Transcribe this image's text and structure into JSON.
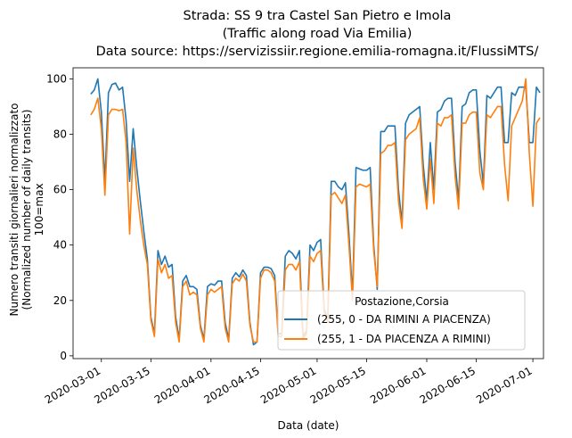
{
  "chart_data": {
    "type": "line",
    "title_lines": [
      "Strada: SS 9 tra Castel San Pietro e Imola",
      "(Traffic along road Via Emilia)",
      "Data source: https://servizissiir.regione.emilia-romagna.it/FlussiMTS/"
    ],
    "xlabel": "Data (date)",
    "ylabel_lines": [
      "Numero transiti giornalieri normalizzato",
      "(Normalized number of daily transits)",
      "100=max"
    ],
    "ylim": [
      -1,
      104
    ],
    "yticks": [
      0,
      20,
      40,
      60,
      80,
      100
    ],
    "xlim": [
      "2020-02-22",
      "2020-07-04"
    ],
    "xticks": [
      "2020-03-01",
      "2020-03-15",
      "2020-04-01",
      "2020-04-15",
      "2020-05-01",
      "2020-05-15",
      "2020-06-01",
      "2020-06-15",
      "2020-07-01"
    ],
    "grid": false,
    "legend": {
      "title": "Postazione,Corsia",
      "position": "lower-right"
    },
    "series": [
      {
        "name": "(255, 0 - DA RIMINI A PIACENZA)",
        "color": "#1f77b4",
        "start": "2020-02-27",
        "values": [
          94.5,
          96,
          100,
          88,
          63,
          95,
          98,
          98.5,
          96,
          97,
          85,
          63,
          82,
          68,
          56,
          45,
          35,
          14,
          8,
          38,
          33,
          36,
          32,
          33,
          14,
          6,
          27,
          29,
          25,
          25,
          24,
          11,
          6,
          25,
          26,
          25.5,
          27,
          27,
          12,
          6,
          28,
          30,
          28.5,
          31,
          29,
          12,
          4,
          5,
          30,
          32,
          32,
          31.5,
          29,
          8,
          8,
          36,
          38,
          37,
          35,
          38,
          7,
          9,
          40,
          38,
          41,
          42,
          17,
          13,
          63,
          63,
          61,
          60,
          62.5,
          44,
          22,
          68,
          67.5,
          67,
          67,
          68,
          40,
          24,
          81,
          81,
          83,
          83,
          83,
          60,
          48,
          84,
          87,
          88,
          89,
          90,
          69,
          56,
          77,
          60,
          88,
          89,
          92,
          93,
          93,
          70,
          56,
          90,
          91,
          95,
          96,
          96,
          74,
          62,
          94,
          93,
          95,
          97,
          97,
          77,
          77,
          95,
          94,
          97,
          97,
          97,
          77,
          77,
          97,
          95
        ]
      },
      {
        "name": "(255, 1 - DA PIACENZA A RIMINI)",
        "color": "#ff7f0e",
        "start": "2020-02-27",
        "values": [
          87,
          89,
          93,
          82,
          58,
          87,
          89,
          89,
          88.5,
          89,
          77,
          44,
          75,
          60,
          49,
          40,
          33,
          13,
          7,
          35,
          30,
          33,
          28,
          29,
          12,
          5,
          25,
          27,
          22,
          23,
          22,
          10,
          5,
          22,
          24,
          23,
          24,
          25,
          10,
          5,
          26,
          28,
          27,
          29.5,
          27,
          11,
          5,
          5,
          28,
          31,
          31,
          30,
          27,
          7,
          7,
          31,
          33,
          33,
          31,
          34,
          6,
          8,
          36,
          34,
          37,
          38,
          16,
          12,
          58,
          59,
          57,
          55,
          58,
          40,
          20,
          61,
          62,
          61.5,
          61,
          62,
          38,
          25,
          73,
          74,
          76,
          76,
          77,
          56,
          46,
          78,
          80,
          81,
          82,
          86,
          64,
          53,
          71,
          55,
          84,
          83,
          86,
          86,
          87,
          65,
          53,
          84,
          84,
          87,
          88,
          88,
          66,
          60,
          87,
          86,
          88,
          90,
          90,
          69,
          56,
          83,
          86,
          89,
          92,
          100,
          73,
          54,
          84,
          86
        ]
      }
    ]
  }
}
